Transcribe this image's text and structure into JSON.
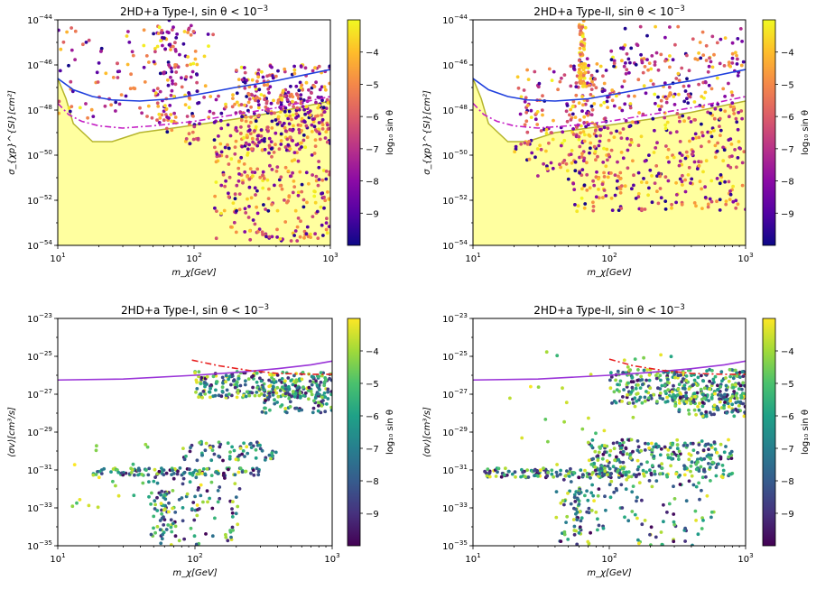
{
  "colormaps": {
    "plasma": [
      "#0d0887",
      "#5302a3",
      "#8b0aa5",
      "#b83289",
      "#db5c68",
      "#f48849",
      "#febd2a",
      "#f0f921"
    ],
    "viridis": [
      "#440154",
      "#46327e",
      "#365c8d",
      "#277f8e",
      "#1fa187",
      "#4ac16d",
      "#a0da39",
      "#fde725"
    ]
  },
  "colors": {
    "excluded_fill": "#ffff9f",
    "excluded_edge": "#b5b52d",
    "blue_curve": "#1f3fdd",
    "magenta_curve": "#c41ec4",
    "red_curve": "#e82020",
    "purple_curve": "#9a34d8"
  },
  "chart_data": [
    {
      "type": "scatter",
      "title": "2HD+a Type-I, sin θ < 10",
      "title_exp": "−3",
      "xlabel": "m_χ[GeV]",
      "ylabel": "σ_{χp}^{SI}[cm²]",
      "xscale": "log",
      "yscale": "log",
      "xlim": [
        10,
        1000
      ],
      "ylim": [
        1e-54,
        1e-44
      ],
      "xticks": [
        {
          "base": "10",
          "exp": "1"
        },
        {
          "base": "10",
          "exp": "2"
        },
        {
          "base": "10",
          "exp": "3"
        }
      ],
      "yticks": [
        {
          "base": "10",
          "exp": "−54"
        },
        {
          "base": "10",
          "exp": "−52"
        },
        {
          "base": "10",
          "exp": "−50"
        },
        {
          "base": "10",
          "exp": "−48"
        },
        {
          "base": "10",
          "exp": "−46"
        },
        {
          "base": "10",
          "exp": "−44"
        }
      ],
      "colormap": "plasma",
      "colorbar": {
        "label": "log₁₀ sin θ",
        "range": [
          -10,
          -3
        ],
        "ticks": [
          "−4",
          "−5",
          "−6",
          "−7",
          "−8",
          "−9"
        ]
      },
      "excluded_region": {
        "x": [
          10,
          11.5,
          13,
          18,
          25,
          40,
          70,
          120,
          200,
          400,
          1000
        ],
        "y": [
          -46.6,
          -47.5,
          -48.6,
          -49.4,
          -49.4,
          -49.0,
          -48.8,
          -48.6,
          -48.4,
          -48.1,
          -47.6
        ]
      },
      "curves": [
        {
          "style": "solid",
          "color": "blue_curve",
          "x": [
            10,
            13,
            18,
            25,
            40,
            70,
            120,
            200,
            400,
            1000
          ],
          "y": [
            -46.6,
            -47.1,
            -47.4,
            -47.55,
            -47.6,
            -47.5,
            -47.25,
            -47.0,
            -46.7,
            -46.2
          ]
        },
        {
          "style": "dashdot",
          "color": "magenta_curve",
          "x": [
            10,
            12,
            15,
            20,
            30,
            50,
            100,
            200,
            400,
            1000
          ],
          "y": [
            -47.7,
            -48.2,
            -48.5,
            -48.7,
            -48.8,
            -48.7,
            -48.5,
            -48.2,
            -47.9,
            -47.4
          ]
        }
      ],
      "clusters": [
        {
          "n": 360,
          "x": [
            140,
            1000
          ],
          "y": [
            -53.8,
            -47.0
          ],
          "c": [
            -10,
            -3
          ]
        },
        {
          "n": 280,
          "x": [
            200,
            1000
          ],
          "y": [
            -49.8,
            -46.0
          ],
          "c": [
            -10,
            -3
          ]
        },
        {
          "n": 110,
          "x": [
            10,
            140
          ],
          "y": [
            -48.5,
            -44.2
          ],
          "c": [
            -10,
            -3
          ]
        },
        {
          "n": 80,
          "x": [
            50,
            75
          ],
          "y": [
            -49,
            -44
          ],
          "c": [
            -10,
            -3
          ]
        },
        {
          "n": 45,
          "x": [
            85,
            110
          ],
          "y": [
            -49.5,
            -44.2
          ],
          "c": [
            -10,
            -3
          ]
        }
      ]
    },
    {
      "type": "scatter",
      "title": "2HD+a Type-II, sin θ < 10",
      "title_exp": "−3",
      "xlabel": "m_χ[GeV]",
      "ylabel": "σ_{χp}^{SI}[cm²]",
      "xscale": "log",
      "yscale": "log",
      "xlim": [
        10,
        1000
      ],
      "ylim": [
        1e-54,
        1e-44
      ],
      "xticks": [
        {
          "base": "10",
          "exp": "1"
        },
        {
          "base": "10",
          "exp": "2"
        },
        {
          "base": "10",
          "exp": "3"
        }
      ],
      "yticks": [
        {
          "base": "10",
          "exp": "−54"
        },
        {
          "base": "10",
          "exp": "−52"
        },
        {
          "base": "10",
          "exp": "−50"
        },
        {
          "base": "10",
          "exp": "−48"
        },
        {
          "base": "10",
          "exp": "−46"
        },
        {
          "base": "10",
          "exp": "−44"
        }
      ],
      "colormap": "plasma",
      "colorbar": {
        "label": "log₁₀ sin θ",
        "range": [
          -10,
          -3
        ],
        "ticks": [
          "−4",
          "−5",
          "−6",
          "−7",
          "−8",
          "−9"
        ]
      },
      "excluded_region": {
        "x": [
          10,
          11.5,
          13,
          18,
          25,
          40,
          70,
          120,
          200,
          400,
          1000
        ],
        "y": [
          -46.6,
          -47.5,
          -48.6,
          -49.4,
          -49.4,
          -49.0,
          -48.8,
          -48.6,
          -48.4,
          -48.1,
          -47.6
        ]
      },
      "curves": [
        {
          "style": "solid",
          "color": "blue_curve",
          "x": [
            10,
            13,
            18,
            25,
            40,
            70,
            120,
            200,
            400,
            1000
          ],
          "y": [
            -46.6,
            -47.1,
            -47.4,
            -47.55,
            -47.6,
            -47.5,
            -47.25,
            -47.0,
            -46.7,
            -46.2
          ]
        },
        {
          "style": "dashdot",
          "color": "magenta_curve",
          "x": [
            10,
            12,
            15,
            20,
            30,
            50,
            100,
            200,
            400,
            1000
          ],
          "y": [
            -47.7,
            -48.2,
            -48.5,
            -48.7,
            -48.8,
            -48.7,
            -48.5,
            -48.2,
            -47.9,
            -47.4
          ]
        }
      ],
      "clusters": [
        {
          "n": 520,
          "x": [
            50,
            1000
          ],
          "y": [
            -52.5,
            -45.5
          ],
          "c": [
            -10,
            -3
          ]
        },
        {
          "n": 160,
          "x": [
            20,
            100
          ],
          "y": [
            -51.0,
            -46.0
          ],
          "c": [
            -10,
            -3
          ]
        },
        {
          "n": 70,
          "x": [
            60,
            67
          ],
          "y": [
            -47,
            -44
          ],
          "c": [
            -6,
            -3
          ]
        },
        {
          "n": 50,
          "x": [
            100,
            1000
          ],
          "y": [
            -46,
            -44.3
          ],
          "c": [
            -10,
            -3
          ]
        }
      ]
    },
    {
      "type": "scatter",
      "title": "2HD+a Type-I, sin θ < 10",
      "title_exp": "−3",
      "xlabel": "m_χ[GeV]",
      "ylabel": "⟨σv⟩[cm³/s]",
      "xscale": "log",
      "yscale": "log",
      "xlim": [
        10,
        1000
      ],
      "ylim": [
        1e-35,
        1e-23
      ],
      "xticks": [
        {
          "base": "10",
          "exp": "1"
        },
        {
          "base": "10",
          "exp": "2"
        },
        {
          "base": "10",
          "exp": "3"
        }
      ],
      "yticks": [
        {
          "base": "10",
          "exp": "−35"
        },
        {
          "base": "10",
          "exp": "−33"
        },
        {
          "base": "10",
          "exp": "−31"
        },
        {
          "base": "10",
          "exp": "−29"
        },
        {
          "base": "10",
          "exp": "−27"
        },
        {
          "base": "10",
          "exp": "−25"
        },
        {
          "base": "10",
          "exp": "−23"
        }
      ],
      "colormap": "viridis",
      "colorbar": {
        "label": "log₁₀ sin θ",
        "range": [
          -10,
          -3
        ],
        "ticks": [
          "−4",
          "−5",
          "−6",
          "−7",
          "−8",
          "−9"
        ]
      },
      "excluded_region": null,
      "curves": [
        {
          "style": "solid",
          "color": "purple_curve",
          "x": [
            10,
            30,
            100,
            200,
            400,
            700,
            1000
          ],
          "y": [
            -26.25,
            -26.2,
            -26.0,
            -25.85,
            -25.65,
            -25.45,
            -25.25
          ]
        },
        {
          "style": "dashdot",
          "color": "red_curve",
          "x": [
            95,
            150,
            250,
            400,
            700,
            1000
          ],
          "y": [
            -25.2,
            -25.5,
            -25.75,
            -25.9,
            -25.95,
            -25.95
          ]
        }
      ],
      "clusters": [
        {
          "n": 260,
          "x": [
            100,
            1000
          ],
          "y": [
            -27.2,
            -25.8
          ],
          "c": [
            -10,
            -3
          ]
        },
        {
          "n": 90,
          "x": [
            300,
            1000
          ],
          "y": [
            -28.0,
            -26.5
          ],
          "c": [
            -10,
            -3
          ]
        },
        {
          "n": 110,
          "x": [
            18,
            300
          ],
          "y": [
            -31.3,
            -30.9
          ],
          "c": [
            -10,
            -3
          ]
        },
        {
          "n": 70,
          "x": [
            80,
            400
          ],
          "y": [
            -30.5,
            -29.5
          ],
          "c": [
            -10,
            -3
          ]
        },
        {
          "n": 110,
          "x": [
            45,
            230
          ],
          "y": [
            -35,
            -31.2
          ],
          "c": [
            -10,
            -3
          ]
        },
        {
          "n": 28,
          "x": [
            55,
            63
          ],
          "y": [
            -34.5,
            -32.0
          ],
          "c": [
            -10,
            -3
          ]
        },
        {
          "n": 20,
          "x": [
            12,
            60
          ],
          "y": [
            -33,
            -29.5
          ],
          "c": [
            -6,
            -3
          ]
        }
      ]
    },
    {
      "type": "scatter",
      "title": "2HD+a Type-II, sin θ < 10",
      "title_exp": "−3",
      "xlabel": "m_χ[GeV]",
      "ylabel": "⟨σv⟩[cm³/s]",
      "xscale": "log",
      "yscale": "log",
      "xlim": [
        10,
        1000
      ],
      "ylim": [
        1e-35,
        1e-23
      ],
      "xticks": [
        {
          "base": "10",
          "exp": "1"
        },
        {
          "base": "10",
          "exp": "2"
        },
        {
          "base": "10",
          "exp": "3"
        }
      ],
      "yticks": [
        {
          "base": "10",
          "exp": "−35"
        },
        {
          "base": "10",
          "exp": "−33"
        },
        {
          "base": "10",
          "exp": "−31"
        },
        {
          "base": "10",
          "exp": "−29"
        },
        {
          "base": "10",
          "exp": "−27"
        },
        {
          "base": "10",
          "exp": "−25"
        },
        {
          "base": "10",
          "exp": "−23"
        }
      ],
      "colormap": "viridis",
      "colorbar": {
        "label": "log₁₀ sin θ",
        "range": [
          -10,
          -3
        ],
        "ticks": [
          "−4",
          "−5",
          "−6",
          "−7",
          "−8",
          "−9"
        ]
      },
      "excluded_region": null,
      "curves": [
        {
          "style": "solid",
          "color": "purple_curve",
          "x": [
            10,
            30,
            100,
            200,
            400,
            700,
            1000
          ],
          "y": [
            -26.25,
            -26.2,
            -26.0,
            -25.85,
            -25.65,
            -25.45,
            -25.25
          ]
        },
        {
          "style": "dashdot",
          "color": "red_curve",
          "x": [
            100,
            150,
            250,
            400,
            700,
            1000
          ],
          "y": [
            -25.15,
            -25.5,
            -25.75,
            -25.9,
            -25.95,
            -25.95
          ]
        }
      ],
      "clusters": [
        {
          "n": 300,
          "x": [
            100,
            1000
          ],
          "y": [
            -27.5,
            -25.7
          ],
          "c": [
            -10,
            -3
          ]
        },
        {
          "n": 120,
          "x": [
            300,
            1000
          ],
          "y": [
            -28.2,
            -26.5
          ],
          "c": [
            -10,
            -3
          ]
        },
        {
          "n": 260,
          "x": [
            70,
            800
          ],
          "y": [
            -31.4,
            -29.4
          ],
          "c": [
            -10,
            -3
          ]
        },
        {
          "n": 130,
          "x": [
            12,
            150
          ],
          "y": [
            -31.4,
            -30.9
          ],
          "c": [
            -10,
            -3
          ]
        },
        {
          "n": 140,
          "x": [
            40,
            600
          ],
          "y": [
            -35,
            -31.2
          ],
          "c": [
            -10,
            -3
          ]
        },
        {
          "n": 30,
          "x": [
            55,
            62
          ],
          "y": [
            -34.5,
            -32.0
          ],
          "c": [
            -10,
            -3
          ]
        },
        {
          "n": 35,
          "x": [
            15,
            400
          ],
          "y": [
            -31,
            -24.5
          ],
          "c": [
            -6,
            -3
          ]
        }
      ]
    }
  ]
}
